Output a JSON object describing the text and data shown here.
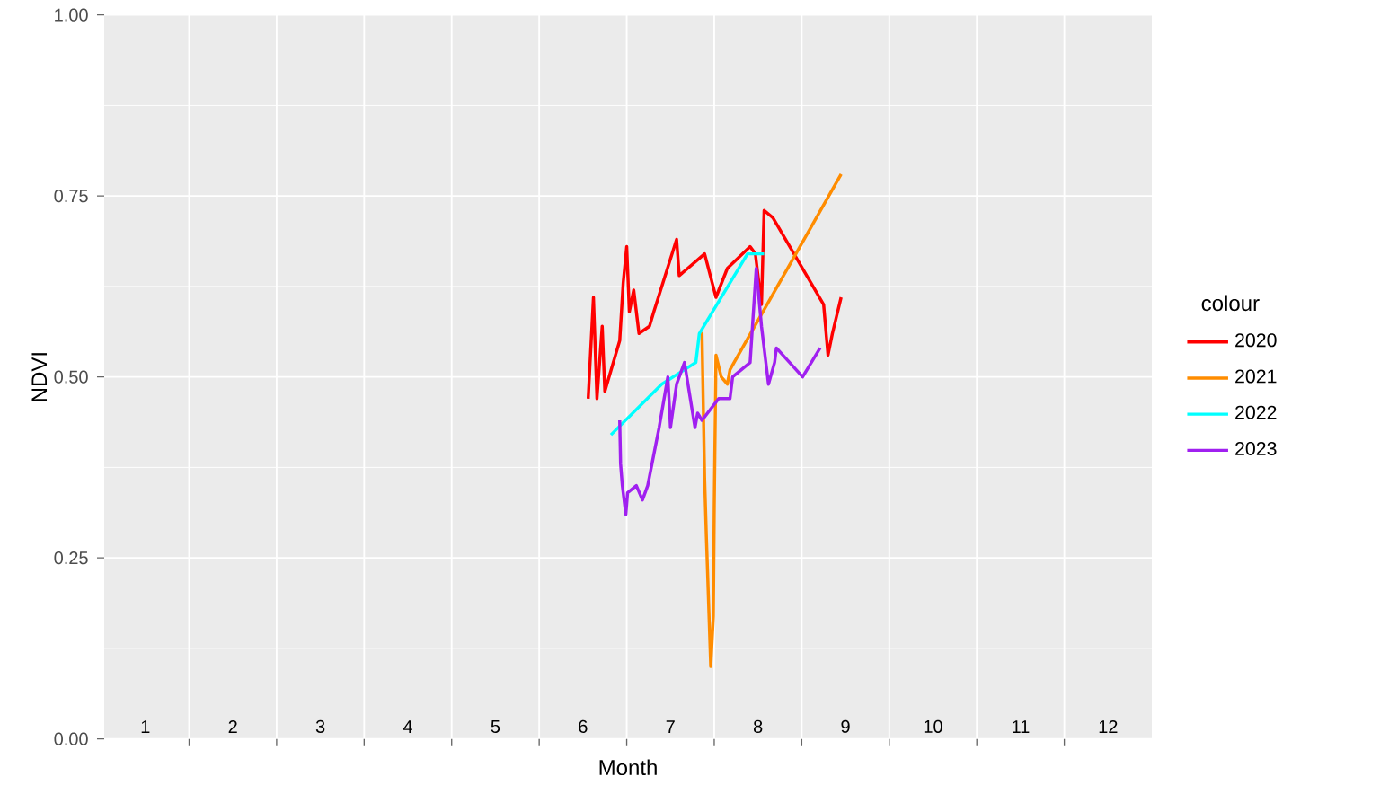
{
  "chart_data": {
    "type": "line",
    "xlabel": "Month",
    "ylabel": "NDVI",
    "legend_title": "colour",
    "legend": "right",
    "grid": true,
    "line_style": "solid",
    "marker": "none",
    "xlim": [
      0.53,
      12.5
    ],
    "ylim": [
      0,
      1
    ],
    "xticks": [
      1,
      2,
      3,
      4,
      5,
      6,
      7,
      8,
      9,
      10,
      11,
      12,
      {
        "value": 1.5,
        "label": null
      },
      {
        "value": 2.5,
        "label": null
      },
      {
        "value": 3.5,
        "label": null
      },
      {
        "value": 4.5,
        "label": null
      },
      {
        "value": 5.5,
        "label": null
      },
      {
        "value": 6.5,
        "label": null
      },
      {
        "value": 7.5,
        "label": null
      },
      {
        "value": 8.5,
        "label": null
      },
      {
        "value": 9.5,
        "label": null
      },
      {
        "value": 10.5,
        "label": null
      },
      {
        "value": 11.5,
        "label": null
      }
    ],
    "yticks": [
      {
        "value": 0,
        "label": "0.00"
      },
      {
        "value": 0.25,
        "label": "0.25"
      },
      {
        "value": 0.5,
        "label": "0.50"
      },
      {
        "value": 0.75,
        "label": "0.75"
      },
      {
        "value": 1,
        "label": "1.00"
      }
    ],
    "series": [
      {
        "name": "2020",
        "color": "#ff0000",
        "x": [
          6.06,
          6.12,
          6.16,
          6.22,
          6.25,
          6.42,
          6.46,
          6.5,
          6.53,
          6.58,
          6.64,
          6.76,
          6.81,
          7.07,
          7.1,
          7.39,
          7.52,
          7.65,
          7.91,
          7.97,
          8.04,
          8.07,
          8.17,
          8.75,
          8.8,
          8.85,
          8.95
        ],
        "values": [
          0.47,
          0.61,
          0.47,
          0.57,
          0.48,
          0.55,
          0.63,
          0.68,
          0.59,
          0.62,
          0.56,
          0.57,
          0.59,
          0.69,
          0.64,
          0.67,
          0.61,
          0.65,
          0.68,
          0.67,
          0.6,
          0.73,
          0.72,
          0.6,
          0.53,
          0.56,
          0.61
        ]
      },
      {
        "name": "2021",
        "color": "#ff8c00",
        "x": [
          7.34,
          7.36,
          7.39,
          7.41,
          7.46,
          7.49,
          7.5,
          7.52,
          7.58,
          7.65,
          7.68,
          8.95
        ],
        "values": [
          0.56,
          0.56,
          0.36,
          0.28,
          0.1,
          0.17,
          0.32,
          0.53,
          0.5,
          0.49,
          0.51,
          0.78
        ]
      },
      {
        "name": "2022",
        "color": "#00ffff",
        "x": [
          6.32,
          6.9,
          7.29,
          7.33,
          7.88,
          8.07
        ],
        "values": [
          0.42,
          0.49,
          0.52,
          0.56,
          0.67,
          0.67
        ]
      },
      {
        "name": "2023",
        "color": "#a020f0",
        "x": [
          6.42,
          6.43,
          6.45,
          6.49,
          6.51,
          6.61,
          6.68,
          6.74,
          6.87,
          6.97,
          7.0,
          7.07,
          7.16,
          7.28,
          7.31,
          7.36,
          7.55,
          7.68,
          7.71,
          7.91,
          7.98,
          8.04,
          8.12,
          8.19,
          8.21,
          8.51,
          8.71
        ],
        "values": [
          0.44,
          0.38,
          0.35,
          0.31,
          0.34,
          0.35,
          0.33,
          0.35,
          0.43,
          0.5,
          0.43,
          0.49,
          0.52,
          0.43,
          0.45,
          0.44,
          0.47,
          0.47,
          0.5,
          0.52,
          0.65,
          0.57,
          0.49,
          0.52,
          0.54,
          0.5,
          0.54
        ]
      }
    ]
  }
}
